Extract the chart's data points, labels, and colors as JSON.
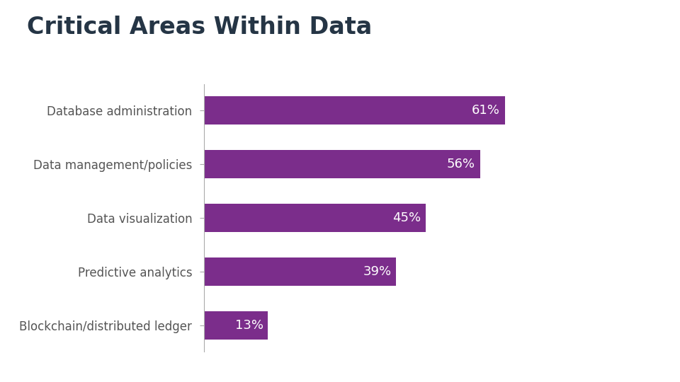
{
  "title": "Critical Areas Within Data",
  "title_color": "#253545",
  "title_fontsize": 24,
  "title_fontweight": "bold",
  "categories": [
    "Blockchain/distributed ledger",
    "Predictive analytics",
    "Data visualization",
    "Data management/policies",
    "Database administration"
  ],
  "values": [
    13,
    39,
    45,
    56,
    61
  ],
  "bar_color": "#7b2d8b",
  "label_color": "#ffffff",
  "label_fontsize": 13,
  "category_fontsize": 12,
  "category_color": "#555555",
  "background_color": "#ffffff",
  "xlim": [
    0,
    80
  ],
  "bar_height": 0.52
}
